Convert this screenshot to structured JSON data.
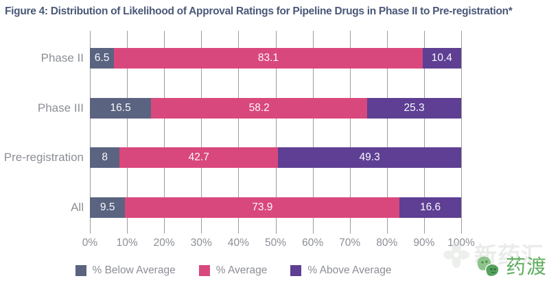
{
  "figure": {
    "title": "Figure 4: Distribution of Likelihood of Approval Ratings for Pipeline Drugs in Phase II to Pre-registration*"
  },
  "chart_data": {
    "type": "bar",
    "orientation": "horizontal",
    "stacked": true,
    "title": "Figure 4: Distribution of Likelihood of Approval Ratings for Pipeline Drugs in Phase II to Pre-registration*",
    "categories": [
      "Phase II",
      "Phase III",
      "Pre-registration",
      "All"
    ],
    "series": [
      {
        "name": "% Below Average",
        "color": "#5A6480",
        "values": [
          6.5,
          16.5,
          8,
          9.5
        ]
      },
      {
        "name": "% Average",
        "color": "#D9487C",
        "values": [
          83.1,
          58.2,
          42.7,
          73.9
        ]
      },
      {
        "name": "% Above Average",
        "color": "#5E3F94",
        "values": [
          10.4,
          25.3,
          49.3,
          16.6
        ]
      }
    ],
    "x_ticks": [
      "0%",
      "10%",
      "20%",
      "30%",
      "40%",
      "50%",
      "60%",
      "70%",
      "80%",
      "90%",
      "100%"
    ],
    "xlim": [
      0,
      100
    ],
    "grid": true,
    "legend_position": "bottom",
    "value_labels_shown": true
  },
  "styles": {
    "title_color": "#4A5878",
    "axis_label_color": "#8B8E96",
    "grid_color": "#9B9B9B",
    "value_label_color": "#FAFAFC"
  },
  "watermark": {
    "background_text": "新药汇",
    "logo_text": "药渡"
  }
}
